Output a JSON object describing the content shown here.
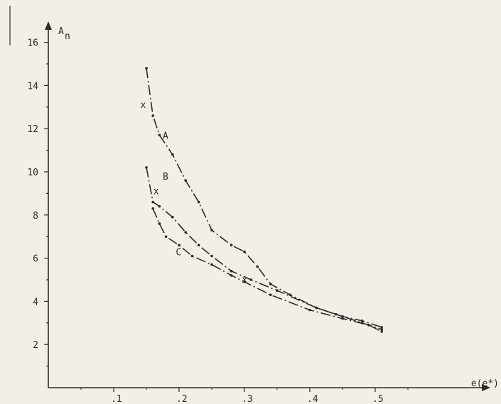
{
  "chart_data": {
    "type": "line",
    "title": "",
    "xlabel": "e(e*)",
    "ylabel": "A",
    "ylabel_subscript": "n",
    "xlim": [
      0.0,
      0.55
    ],
    "ylim": [
      0,
      17
    ],
    "x_ticks": [
      {
        "value": 0.1,
        "label": ".1"
      },
      {
        "value": 0.2,
        "label": ".2"
      },
      {
        "value": 0.3,
        "label": ".3"
      },
      {
        "value": 0.4,
        "label": ".4"
      },
      {
        "value": 0.5,
        "label": ".5"
      }
    ],
    "y_ticks": [
      {
        "value": 2,
        "label": "2"
      },
      {
        "value": 4,
        "label": "4"
      },
      {
        "value": 6,
        "label": "6"
      },
      {
        "value": 8,
        "label": "8"
      },
      {
        "value": 10,
        "label": "10"
      },
      {
        "value": 12,
        "label": "12"
      },
      {
        "value": 14,
        "label": "14"
      },
      {
        "value": 16,
        "label": "16"
      }
    ],
    "grid": false,
    "legend": "none",
    "series": [
      {
        "name": "A",
        "style": "dash-dot",
        "points": [
          [
            0.15,
            14.8
          ],
          [
            0.16,
            12.6
          ],
          [
            0.17,
            11.7
          ],
          [
            0.19,
            10.8
          ],
          [
            0.21,
            9.6
          ],
          [
            0.23,
            8.6
          ],
          [
            0.25,
            7.3
          ],
          [
            0.28,
            6.6
          ],
          [
            0.3,
            6.3
          ],
          [
            0.32,
            5.6
          ],
          [
            0.34,
            4.8
          ],
          [
            0.37,
            4.3
          ],
          [
            0.41,
            3.7
          ],
          [
            0.44,
            3.4
          ],
          [
            0.48,
            3.0
          ],
          [
            0.51,
            2.7
          ]
        ]
      },
      {
        "name": "B",
        "style": "dash-dot",
        "points": [
          [
            0.15,
            10.2
          ],
          [
            0.16,
            8.6
          ],
          [
            0.17,
            8.4
          ],
          [
            0.19,
            7.9
          ],
          [
            0.21,
            7.2
          ],
          [
            0.23,
            6.6
          ],
          [
            0.25,
            6.1
          ],
          [
            0.28,
            5.4
          ],
          [
            0.31,
            5.0
          ],
          [
            0.35,
            4.5
          ],
          [
            0.41,
            3.7
          ],
          [
            0.45,
            3.3
          ],
          [
            0.48,
            3.1
          ],
          [
            0.51,
            2.8
          ]
        ]
      },
      {
        "name": "C",
        "style": "dash-dot",
        "points": [
          [
            0.16,
            8.3
          ],
          [
            0.17,
            7.6
          ],
          [
            0.18,
            7.0
          ],
          [
            0.2,
            6.6
          ],
          [
            0.22,
            6.1
          ],
          [
            0.25,
            5.7
          ],
          [
            0.28,
            5.2
          ],
          [
            0.3,
            4.9
          ],
          [
            0.34,
            4.3
          ],
          [
            0.4,
            3.6
          ],
          [
            0.45,
            3.2
          ],
          [
            0.49,
            2.9
          ],
          [
            0.51,
            2.6
          ]
        ]
      }
    ],
    "x_markers": [
      {
        "label": "x",
        "x": 0.145,
        "y": 13.1
      },
      {
        "label": "x",
        "x": 0.165,
        "y": 9.1
      },
      {
        "label": "x",
        "x": 0.3,
        "y": 5.0
      }
    ],
    "curve_labels": [
      {
        "text": "A",
        "x": 0.175,
        "y": 11.7
      },
      {
        "text": "B",
        "x": 0.175,
        "y": 9.8
      },
      {
        "text": "C",
        "x": 0.195,
        "y": 6.3
      }
    ]
  }
}
